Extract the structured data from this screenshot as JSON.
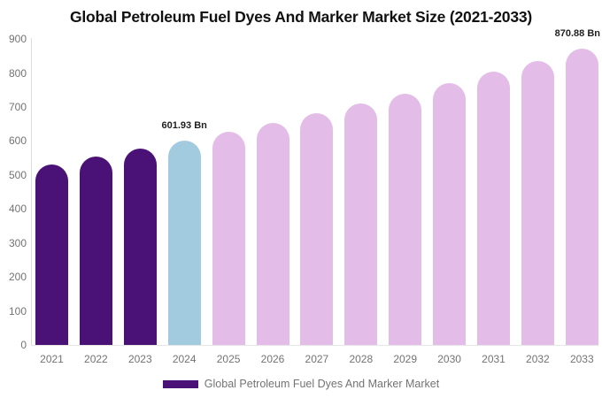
{
  "chart_data": {
    "type": "bar",
    "title": "Global Petroleum Fuel Dyes And Marker Market Size (2021-2033)",
    "unit": "Bn",
    "categories": [
      "2021",
      "2022",
      "2023",
      "2024",
      "2025",
      "2026",
      "2027",
      "2028",
      "2029",
      "2030",
      "2031",
      "2032",
      "2033"
    ],
    "values": [
      532,
      554,
      578,
      601.93,
      627,
      654,
      681,
      710,
      739,
      770,
      803,
      836,
      870.88
    ],
    "color_map": [
      "past",
      "past",
      "past",
      "current",
      "forecast",
      "forecast",
      "forecast",
      "forecast",
      "forecast",
      "forecast",
      "forecast",
      "forecast",
      "forecast"
    ],
    "bar_colors": {
      "past": "#4A1277",
      "current": "#A3CBE0",
      "forecast": "#E4BCE8"
    },
    "data_labels": [
      {
        "index": 3,
        "text": "601.93 Bn",
        "align": "center"
      },
      {
        "index": 12,
        "text": "870.88 Bn",
        "align": "right"
      }
    ],
    "ylim": [
      0,
      900
    ],
    "yticks": [
      0,
      100,
      200,
      300,
      400,
      500,
      600,
      700,
      800,
      900
    ],
    "grid": false,
    "legend_position": "bottom",
    "legend": [
      {
        "label": "Global Petroleum Fuel Dyes And Marker Market",
        "color": "#4A1277"
      }
    ],
    "axis_line_color": "#dcdcdc",
    "tick_label_color": "#737373",
    "title_color": "#111111"
  }
}
